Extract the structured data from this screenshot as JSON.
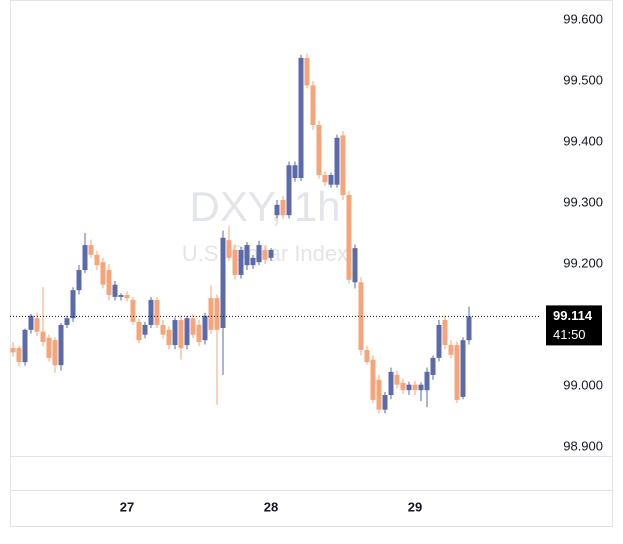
{
  "chart_data": {
    "type": "candlestick",
    "watermark_title": "DXY, 1h",
    "watermark_subtitle": "U.S. Dollar Index",
    "up_color": "#5b6aa8",
    "down_color": "#f4a57a",
    "ylim": [
      98.885,
      99.633
    ],
    "yticks": [
      {
        "value": 98.9,
        "label": "98.900"
      },
      {
        "value": 99.0,
        "label": "99.000"
      },
      {
        "value": 99.2,
        "label": "99.200"
      },
      {
        "value": 99.3,
        "label": "99.300"
      },
      {
        "value": 99.4,
        "label": "99.400"
      },
      {
        "value": 99.5,
        "label": "99.500"
      },
      {
        "value": 99.6,
        "label": "99.600"
      }
    ],
    "last_price": 99.114,
    "countdown": "41:50",
    "categories": [
      null,
      null,
      null,
      null,
      null,
      null,
      null,
      null,
      null,
      null,
      null,
      null,
      null,
      null,
      null,
      null,
      null,
      null,
      null,
      "27",
      null,
      null,
      null,
      null,
      null,
      null,
      null,
      null,
      null,
      null,
      null,
      null,
      null,
      null,
      null,
      null,
      null,
      null,
      null,
      null,
      null,
      null,
      null,
      "28",
      null,
      null,
      null,
      null,
      null,
      null,
      null,
      null,
      null,
      null,
      null,
      null,
      null,
      null,
      null,
      null,
      null,
      null,
      null,
      null,
      null,
      null,
      null,
      "29",
      null,
      null,
      null,
      null,
      null,
      null,
      null,
      null,
      null
    ],
    "open": [
      99.062,
      99.062,
      99.039,
      99.092,
      99.111,
      99.089,
      99.079,
      99.075,
      99.034,
      99.1,
      99.111,
      99.157,
      99.19,
      99.231,
      99.215,
      99.203,
      99.19,
      99.146,
      99.146,
      99.149,
      99.141,
      99.105,
      99.084,
      99.1,
      99.141,
      99.1,
      99.092,
      99.067,
      99.108,
      99.067,
      99.111,
      99.1,
      99.075,
      99.144,
      99.144,
      99.095,
      99.239,
      99.223,
      99.182,
      99.198,
      99.198,
      99.203,
      99.223,
      99.21,
      99.28,
      99.305,
      99.28,
      99.341,
      99.341,
      99.538,
      99.493,
      99.428,
      99.346,
      99.33,
      99.33,
      99.411,
      99.313,
      99.17,
      99.17,
      99.059,
      99.043,
      99.01,
      98.961,
      98.985,
      99.018,
      99.005,
      98.993,
      99.002,
      98.993,
      98.993,
      99.018,
      99.046,
      99.108,
      99.067,
      99.067,
      98.982,
      99.075
    ],
    "high": [
      99.072,
      99.066,
      99.094,
      99.118,
      99.12,
      99.162,
      99.084,
      99.08,
      99.103,
      99.115,
      99.162,
      99.198,
      99.251,
      99.24,
      99.222,
      99.21,
      99.2,
      99.172,
      99.152,
      99.155,
      99.146,
      99.11,
      99.105,
      99.146,
      99.146,
      99.108,
      99.098,
      99.112,
      99.115,
      99.115,
      99.118,
      99.108,
      99.12,
      99.165,
      99.15,
      99.255,
      99.262,
      99.232,
      99.228,
      99.236,
      99.215,
      99.238,
      99.23,
      99.226,
      99.305,
      99.312,
      99.368,
      99.368,
      99.543,
      99.545,
      99.5,
      99.435,
      99.352,
      99.35,
      99.412,
      99.418,
      99.32,
      99.232,
      99.178,
      99.066,
      99.05,
      99.018,
      98.99,
      99.03,
      99.025,
      99.012,
      99.007,
      99.008,
      99.006,
      99.03,
      99.05,
      99.108,
      99.115,
      99.075,
      99.073,
      99.08,
      99.13
    ],
    "low": [
      99.048,
      99.032,
      99.033,
      99.086,
      99.082,
      99.065,
      99.04,
      99.022,
      99.025,
      99.095,
      99.105,
      99.15,
      99.185,
      99.21,
      99.19,
      99.16,
      99.14,
      99.14,
      99.14,
      99.138,
      99.1,
      99.07,
      99.078,
      99.095,
      99.095,
      99.078,
      99.06,
      99.06,
      99.043,
      99.06,
      99.078,
      99.065,
      99.068,
      99.085,
      98.969,
      99.018,
      99.205,
      99.175,
      99.176,
      99.19,
      99.192,
      99.198,
      99.2,
      99.205,
      99.275,
      99.274,
      99.275,
      99.335,
      99.336,
      99.488,
      99.42,
      99.34,
      99.328,
      99.325,
      99.325,
      99.305,
      99.168,
      99.16,
      99.05,
      99.035,
      98.972,
      98.955,
      98.955,
      98.978,
      98.996,
      98.987,
      98.985,
      98.985,
      98.975,
      98.965,
      99.01,
      99.04,
      99.06,
      99.045,
      98.972,
      98.978,
      99.068
    ],
    "close": [
      99.055,
      99.039,
      99.092,
      99.115,
      99.089,
      99.072,
      99.046,
      99.034,
      99.1,
      99.111,
      99.157,
      99.19,
      99.231,
      99.215,
      99.198,
      99.166,
      99.149,
      99.166,
      99.149,
      99.144,
      99.105,
      99.075,
      99.1,
      99.141,
      99.1,
      99.084,
      99.067,
      99.108,
      99.062,
      99.111,
      99.084,
      99.072,
      99.115,
      99.092,
      99.092,
      99.243,
      99.21,
      99.182,
      99.223,
      99.231,
      99.21,
      99.231,
      99.207,
      99.223,
      99.297,
      99.28,
      99.362,
      99.362,
      99.538,
      99.493,
      99.428,
      99.346,
      99.334,
      99.346,
      99.407,
      99.313,
      99.174,
      99.226,
      99.059,
      99.039,
      98.977,
      98.961,
      98.985,
      99.023,
      99.002,
      98.993,
      99.002,
      98.993,
      99.002,
      99.023,
      99.046,
      99.1,
      99.067,
      99.051,
      98.977,
      99.075,
      99.114
    ]
  }
}
